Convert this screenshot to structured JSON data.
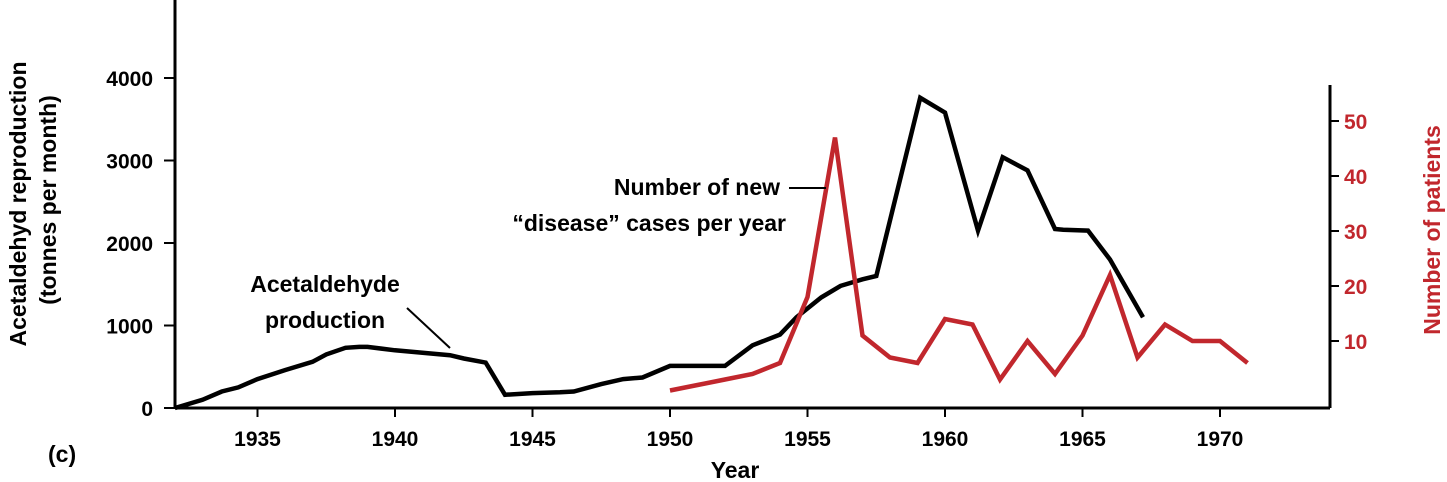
{
  "panel_label": "(c)",
  "colors": {
    "production": "#000000",
    "patients": "#c1272d"
  },
  "chart_data": {
    "type": "line",
    "xlabel": "Year",
    "ylabel_left": [
      "Acetaldehyd reproduction",
      "(tonnes per month)"
    ],
    "ylabel_right": "Number of patients",
    "xlim": [
      1932,
      1974
    ],
    "ylim_left": [
      0,
      4000
    ],
    "ylim_right": [
      0,
      56
    ],
    "x_ticks": [
      1935,
      1940,
      1945,
      1950,
      1955,
      1960,
      1965,
      1970
    ],
    "y_ticks_left": [
      0,
      1000,
      2000,
      3000,
      4000
    ],
    "y_ticks_right": [
      10,
      20,
      30,
      40,
      50
    ],
    "grid": false,
    "annotations": {
      "production": [
        "Acetaldehyde",
        "production"
      ],
      "cases": [
        "Number of new",
        "“disease” cases per year"
      ]
    },
    "series": [
      {
        "key": "production",
        "axis": "left",
        "x": [
          1932,
          1933,
          1933.7,
          1934.3,
          1935,
          1936,
          1937,
          1937.5,
          1938.2,
          1938.7,
          1939,
          1940,
          1941,
          1942,
          1942.5,
          1943.3,
          1944,
          1945,
          1946,
          1946.5,
          1947.5,
          1948.3,
          1949,
          1950,
          1951,
          1952,
          1953,
          1954,
          1954.6,
          1955.5,
          1956.2,
          1957,
          1957.5,
          1959.1,
          1960,
          1961.2,
          1962.1,
          1963,
          1964,
          1964.3,
          1965.2,
          1966,
          1966.6,
          1967.2
        ],
        "y": [
          0,
          100,
          200,
          250,
          350,
          460,
          560,
          650,
          730,
          740,
          740,
          700,
          670,
          640,
          600,
          550,
          160,
          180,
          190,
          200,
          290,
          350,
          370,
          510,
          510,
          510,
          760,
          890,
          1100,
          1340,
          1480,
          1560,
          1600,
          3760,
          3580,
          2150,
          3040,
          2880,
          2170,
          2160,
          2150,
          1800,
          1450,
          1100
        ]
      },
      {
        "key": "patients",
        "axis": "right",
        "x": [
          1950,
          1951,
          1952,
          1953,
          1954,
          1955,
          1956,
          1957,
          1958,
          1959,
          1960,
          1961,
          1962,
          1963,
          1964,
          1965,
          1966,
          1967,
          1968,
          1969,
          1970,
          1971
        ],
        "y": [
          1,
          2,
          3,
          4,
          6,
          18,
          47,
          11,
          7,
          6,
          14,
          13,
          3,
          10,
          4,
          11,
          22,
          7,
          13,
          10,
          10,
          6
        ]
      }
    ]
  }
}
